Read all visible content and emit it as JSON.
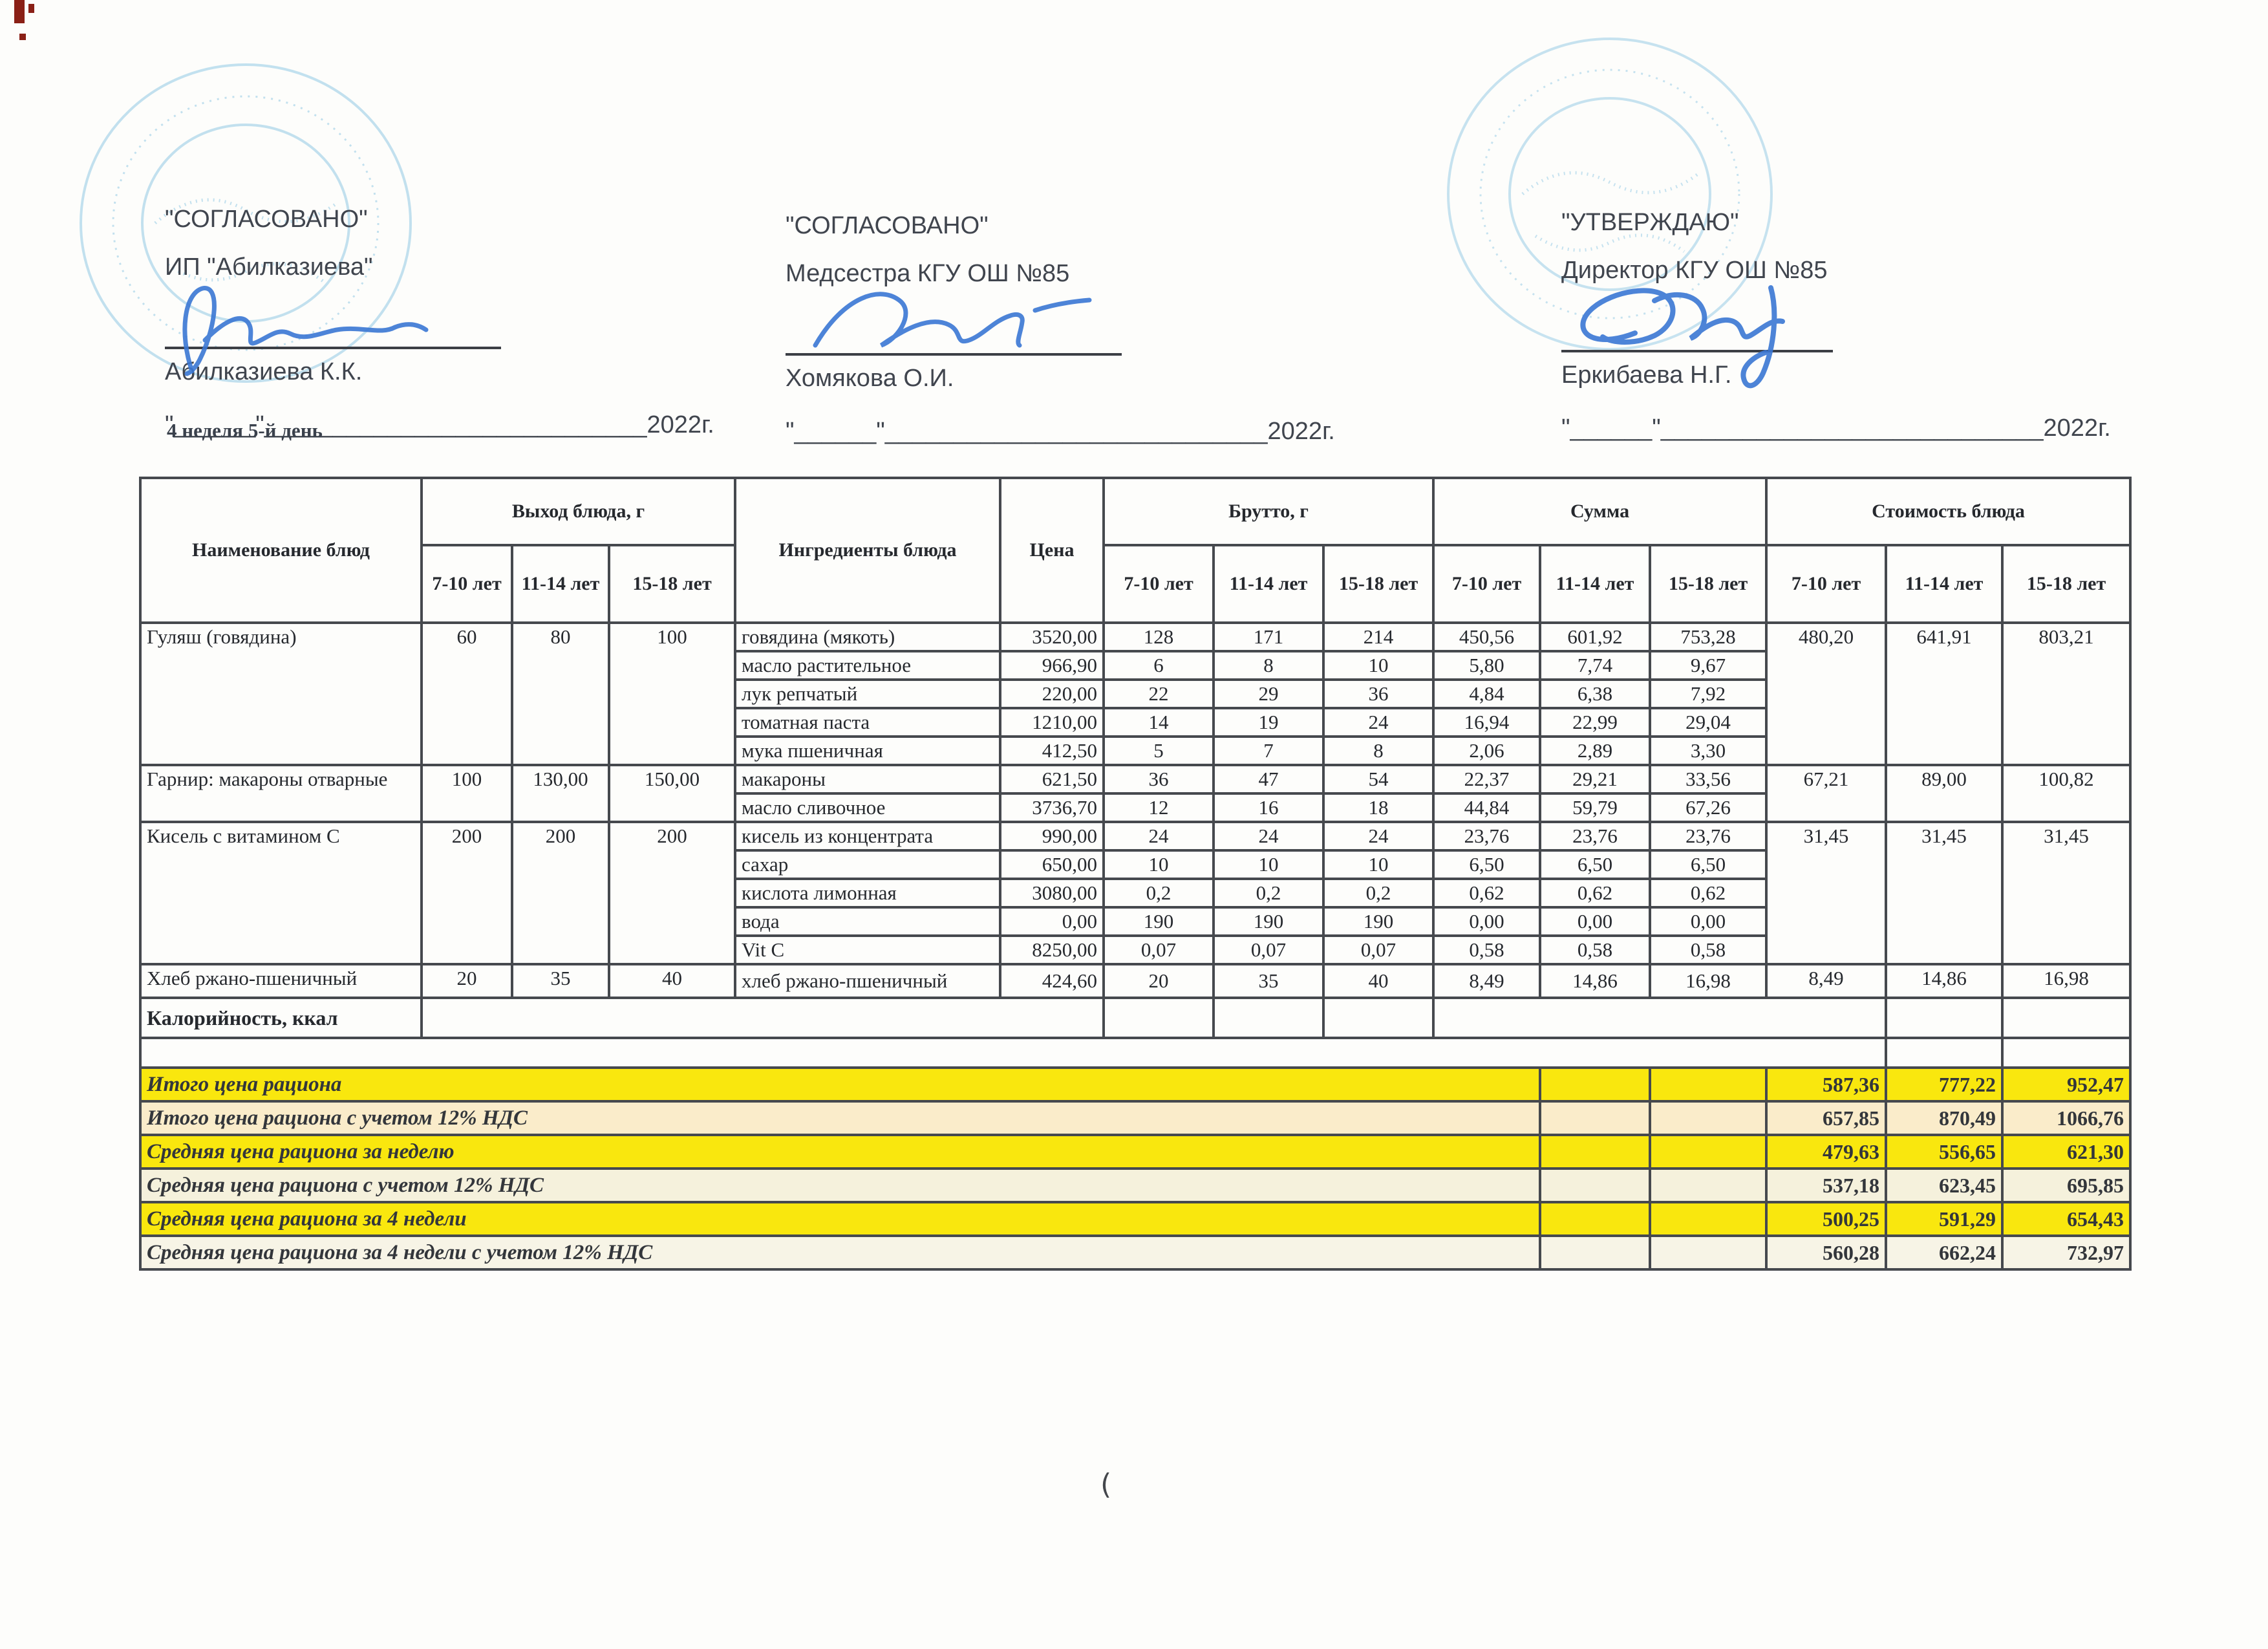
{
  "approvals": [
    {
      "title": "\"СОГЛАСОВАНО\"",
      "role": "ИП \"Абилказиева\"",
      "name": "Абилказиева К.К.",
      "date_line": "\"______\"____________________________2022г."
    },
    {
      "title": "\"СОГЛАСОВАНО\"",
      "role": "Медсестра КГУ ОШ №85",
      "name": "Хомякова О.И.",
      "date_line": "\"______\"____________________________2022г."
    },
    {
      "title": "\"УТВЕРЖДАЮ\"",
      "role": "Директор КГУ ОШ №85",
      "name": "Еркибаева Н.Г.",
      "date_line": "\"______\"____________________________2022г."
    }
  ],
  "week_label": "4 неделя 5-й день",
  "table": {
    "headers": {
      "name": "Наименование блюд",
      "ingredients": "Ингредиенты блюда",
      "price": "Цена",
      "groups": {
        "out": "Выход блюда, г",
        "brutto": "Брутто, г",
        "sum": "Сумма",
        "cost": "Стоимость блюда"
      },
      "ages": [
        "7-10 лет",
        "11-14 лет",
        "15-18 лет"
      ]
    },
    "dishes": [
      {
        "name": "Гуляш (говядина)",
        "out": [
          "60",
          "80",
          "100"
        ],
        "cost": [
          "480,20",
          "641,91",
          "803,21"
        ],
        "ingredients": [
          {
            "name": "говядина (мякоть)",
            "price": "3520,00",
            "brutto": [
              "128",
              "171",
              "214"
            ],
            "sum": [
              "450,56",
              "601,92",
              "753,28"
            ]
          },
          {
            "name": "масло растительное",
            "price": "966,90",
            "brutto": [
              "6",
              "8",
              "10"
            ],
            "sum": [
              "5,80",
              "7,74",
              "9,67"
            ]
          },
          {
            "name": "лук репчатый",
            "price": "220,00",
            "brutto": [
              "22",
              "29",
              "36"
            ],
            "sum": [
              "4,84",
              "6,38",
              "7,92"
            ]
          },
          {
            "name": "томатная паста",
            "price": "1210,00",
            "brutto": [
              "14",
              "19",
              "24"
            ],
            "sum": [
              "16,94",
              "22,99",
              "29,04"
            ]
          },
          {
            "name": "мука пшеничная",
            "price": "412,50",
            "brutto": [
              "5",
              "7",
              "8"
            ],
            "sum": [
              "2,06",
              "2,89",
              "3,30"
            ]
          }
        ]
      },
      {
        "name": "Гарнир: макароны отварные",
        "out": [
          "100",
          "130,00",
          "150,00"
        ],
        "cost": [
          "67,21",
          "89,00",
          "100,82"
        ],
        "ingredients": [
          {
            "name": "макароны",
            "price": "621,50",
            "brutto": [
              "36",
              "47",
              "54"
            ],
            "sum": [
              "22,37",
              "29,21",
              "33,56"
            ]
          },
          {
            "name": "масло сливочное",
            "price": "3736,70",
            "brutto": [
              "12",
              "16",
              "18"
            ],
            "sum": [
              "44,84",
              "59,79",
              "67,26"
            ]
          }
        ]
      },
      {
        "name": "Кисель с витамином С",
        "out": [
          "200",
          "200",
          "200"
        ],
        "cost": [
          "31,45",
          "31,45",
          "31,45"
        ],
        "ingredients": [
          {
            "name": "кисель из концентрата",
            "price": "990,00",
            "brutto": [
              "24",
              "24",
              "24"
            ],
            "sum": [
              "23,76",
              "23,76",
              "23,76"
            ]
          },
          {
            "name": "сахар",
            "price": "650,00",
            "brutto": [
              "10",
              "10",
              "10"
            ],
            "sum": [
              "6,50",
              "6,50",
              "6,50"
            ]
          },
          {
            "name": "кислота лимонная",
            "price": "3080,00",
            "brutto": [
              "0,2",
              "0,2",
              "0,2"
            ],
            "sum": [
              "0,62",
              "0,62",
              "0,62"
            ]
          },
          {
            "name": "вода",
            "price": "0,00",
            "brutto": [
              "190",
              "190",
              "190"
            ],
            "sum": [
              "0,00",
              "0,00",
              "0,00"
            ]
          },
          {
            "name": "Vit C",
            "price": "8250,00",
            "brutto": [
              "0,07",
              "0,07",
              "0,07"
            ],
            "sum": [
              "0,58",
              "0,58",
              "0,58"
            ]
          }
        ]
      },
      {
        "name": "Хлеб ржано-пшеничный",
        "out": [
          "20",
          "35",
          "40"
        ],
        "cost": [
          "8,49",
          "14,86",
          "16,98"
        ],
        "ingredients": [
          {
            "name": "хлеб ржано-пшеничный",
            "price": "424,60",
            "brutto": [
              "20",
              "35",
              "40"
            ],
            "sum": [
              "8,49",
              "14,86",
              "16,98"
            ]
          }
        ]
      }
    ],
    "calories_label": "Калорийность, ккал",
    "summary": [
      {
        "label": "Итого цена рациона",
        "values": [
          "587,36",
          "777,22",
          "952,47"
        ],
        "bg": "yellow"
      },
      {
        "label": "Итого цена рациона с учетом 12% НДС",
        "values": [
          "657,85",
          "870,49",
          "1066,76"
        ],
        "bg": "cream"
      },
      {
        "label": "Средняя цена рациона за неделю",
        "values": [
          "479,63",
          "556,65",
          "621,30"
        ],
        "bg": "yellow"
      },
      {
        "label": "Средняя цена рациона с учетом 12% НДС",
        "values": [
          "537,18",
          "623,45",
          "695,85"
        ],
        "bg": "pale"
      },
      {
        "label": "Средняя цена рациона за 4 недели",
        "values": [
          "500,25",
          "591,29",
          "654,43"
        ],
        "bg": "yellow"
      },
      {
        "label": "Средняя цена рациона за 4 недели с учетом 12% НДС",
        "values": [
          "560,28",
          "662,24",
          "732,97"
        ],
        "bg": "pale2"
      }
    ]
  },
  "colors": {
    "highlight_yellow": "#f9e70e",
    "highlight_cream": "#faecca",
    "highlight_pale": "#f5f1dc",
    "highlight_pale2": "#f7f4e6",
    "stamp_blue": "#7bbfe0",
    "signature_blue": "#3a77d4"
  }
}
